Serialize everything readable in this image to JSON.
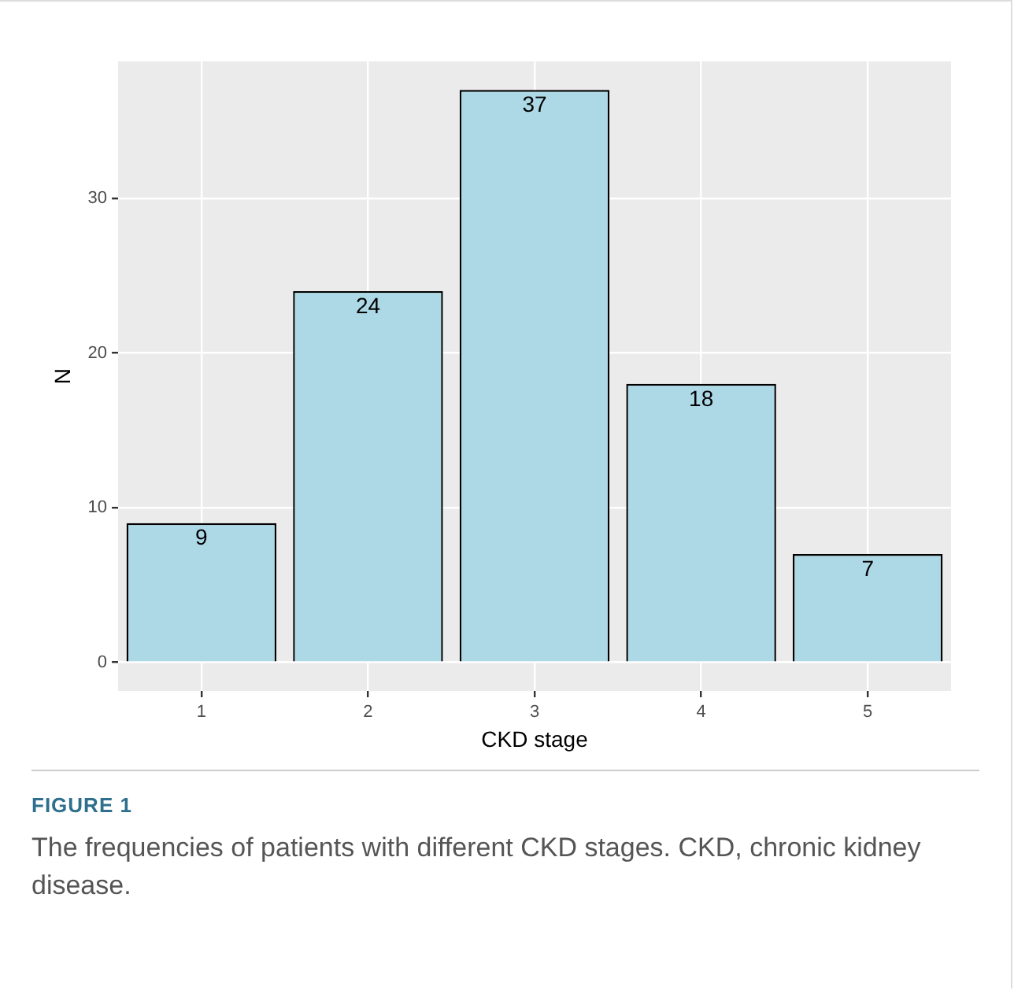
{
  "chart_data": {
    "type": "bar",
    "xlabel": "CKD stage",
    "ylabel": "N",
    "categories": [
      "1",
      "2",
      "3",
      "4",
      "5"
    ],
    "values": [
      9,
      24,
      37,
      18,
      7
    ],
    "color": "#add8e6",
    "ylim": [
      -1.85,
      38.85
    ],
    "yticks": [
      0,
      10,
      20,
      30
    ],
    "grid": true,
    "data_labels": true,
    "legend": false,
    "annotations": [
      "FIGURE 1",
      "The frequencies of patients with different CKD stages. CKD, chronic kidney disease."
    ]
  }
}
